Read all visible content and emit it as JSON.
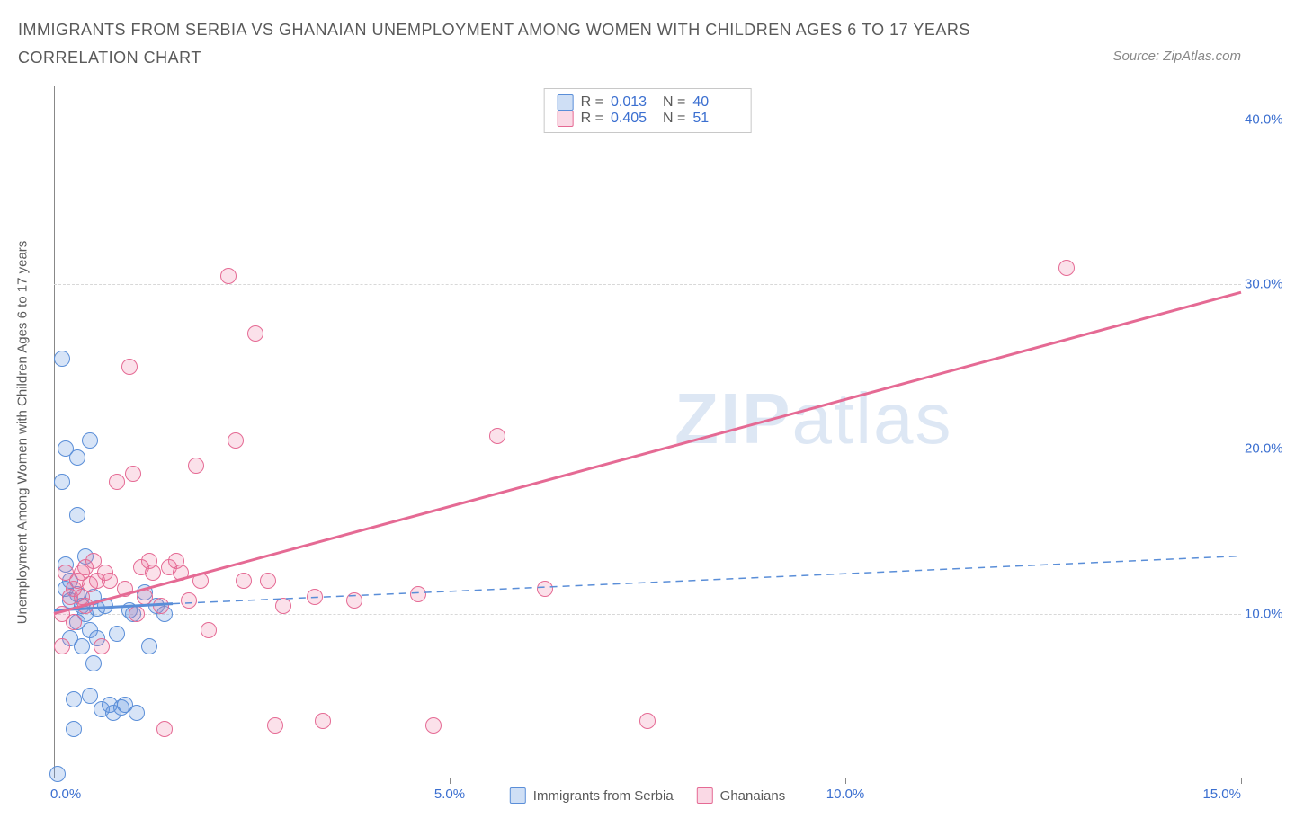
{
  "title": "IMMIGRANTS FROM SERBIA VS GHANAIAN UNEMPLOYMENT AMONG WOMEN WITH CHILDREN AGES 6 TO 17 YEARS CORRELATION CHART",
  "source": "Source: ZipAtlas.com",
  "ylabel": "Unemployment Among Women with Children Ages 6 to 17 years",
  "watermark": {
    "bold": "ZIP",
    "light": "atlas"
  },
  "chart": {
    "type": "scatter",
    "xlim": [
      0,
      15
    ],
    "ylim": [
      0,
      42
    ],
    "x_ticks": [
      0,
      5,
      10,
      15
    ],
    "x_tick_labels": [
      "0.0%",
      "5.0%",
      "10.0%",
      "15.0%"
    ],
    "y_ticks": [
      10,
      20,
      30,
      40
    ],
    "y_tick_labels": [
      "10.0%",
      "20.0%",
      "30.0%",
      "40.0%"
    ],
    "grid_color": "#d8d8d8",
    "axis_color": "#888888",
    "background_color": "#ffffff",
    "series": [
      {
        "name": "Immigrants from Serbia",
        "color_fill": "rgba(96,148,222,0.25)",
        "color_stroke": "#5a8ed8",
        "class": "blue",
        "points": [
          [
            0.05,
            0.3
          ],
          [
            0.1,
            25.5
          ],
          [
            0.1,
            18.0
          ],
          [
            0.15,
            20.0
          ],
          [
            0.15,
            13.0
          ],
          [
            0.15,
            11.5
          ],
          [
            0.2,
            12.0
          ],
          [
            0.2,
            10.8
          ],
          [
            0.2,
            8.5
          ],
          [
            0.25,
            4.8
          ],
          [
            0.25,
            3.0
          ],
          [
            0.3,
            19.5
          ],
          [
            0.3,
            16.0
          ],
          [
            0.3,
            11.2
          ],
          [
            0.3,
            9.5
          ],
          [
            0.35,
            10.5
          ],
          [
            0.35,
            8.0
          ],
          [
            0.4,
            13.5
          ],
          [
            0.4,
            10.0
          ],
          [
            0.45,
            20.5
          ],
          [
            0.45,
            9.0
          ],
          [
            0.45,
            5.0
          ],
          [
            0.5,
            11.0
          ],
          [
            0.5,
            7.0
          ],
          [
            0.55,
            10.3
          ],
          [
            0.55,
            8.5
          ],
          [
            0.6,
            4.2
          ],
          [
            0.65,
            10.5
          ],
          [
            0.7,
            4.5
          ],
          [
            0.75,
            4.0
          ],
          [
            0.8,
            8.8
          ],
          [
            0.85,
            4.3
          ],
          [
            0.9,
            4.5
          ],
          [
            0.95,
            10.2
          ],
          [
            1.0,
            10.0
          ],
          [
            1.05,
            4.0
          ],
          [
            1.15,
            11.3
          ],
          [
            1.2,
            8.0
          ],
          [
            1.3,
            10.5
          ],
          [
            1.4,
            10.0
          ]
        ],
        "trend": {
          "x1": 0,
          "y1": 10.2,
          "x2": 1.5,
          "y2": 10.6,
          "dash_x2": 15,
          "dash_y2": 13.5,
          "stroke_width": 3,
          "dash_pattern": "8,6"
        }
      },
      {
        "name": "Ghanaians",
        "color_fill": "rgba(236,120,160,0.22)",
        "color_stroke": "#e56a94",
        "class": "pink",
        "points": [
          [
            0.1,
            10.0
          ],
          [
            0.1,
            8.0
          ],
          [
            0.15,
            12.5
          ],
          [
            0.2,
            11.0
          ],
          [
            0.25,
            11.5
          ],
          [
            0.25,
            9.5
          ],
          [
            0.3,
            12.0
          ],
          [
            0.35,
            12.5
          ],
          [
            0.35,
            11.0
          ],
          [
            0.4,
            12.8
          ],
          [
            0.4,
            10.5
          ],
          [
            0.45,
            11.8
          ],
          [
            0.5,
            13.2
          ],
          [
            0.55,
            12.0
          ],
          [
            0.6,
            8.0
          ],
          [
            0.65,
            12.5
          ],
          [
            0.7,
            12.0
          ],
          [
            0.8,
            18.0
          ],
          [
            0.9,
            11.5
          ],
          [
            0.95,
            25.0
          ],
          [
            1.0,
            18.5
          ],
          [
            1.05,
            10.0
          ],
          [
            1.1,
            12.8
          ],
          [
            1.15,
            11.0
          ],
          [
            1.2,
            13.2
          ],
          [
            1.25,
            12.5
          ],
          [
            1.35,
            10.5
          ],
          [
            1.4,
            3.0
          ],
          [
            1.45,
            12.8
          ],
          [
            1.55,
            13.2
          ],
          [
            1.6,
            12.5
          ],
          [
            1.7,
            10.8
          ],
          [
            1.8,
            19.0
          ],
          [
            1.85,
            12.0
          ],
          [
            1.95,
            9.0
          ],
          [
            2.2,
            30.5
          ],
          [
            2.3,
            20.5
          ],
          [
            2.4,
            12.0
          ],
          [
            2.55,
            27.0
          ],
          [
            2.7,
            12.0
          ],
          [
            2.8,
            3.2
          ],
          [
            2.9,
            10.5
          ],
          [
            3.3,
            11.0
          ],
          [
            3.4,
            3.5
          ],
          [
            3.8,
            10.8
          ],
          [
            4.6,
            11.2
          ],
          [
            4.8,
            3.2
          ],
          [
            5.6,
            20.8
          ],
          [
            6.2,
            11.5
          ],
          [
            7.5,
            3.5
          ],
          [
            12.8,
            31.0
          ]
        ],
        "trend": {
          "x1": 0,
          "y1": 10.0,
          "x2": 15,
          "y2": 29.5,
          "stroke_width": 3
        }
      }
    ]
  },
  "stats": {
    "rows": [
      {
        "class": "blue",
        "r": "0.013",
        "n": "40"
      },
      {
        "class": "pink",
        "r": "0.405",
        "n": "51"
      }
    ],
    "r_label": "R =",
    "n_label": "N ="
  },
  "legend": {
    "items": [
      {
        "class": "blue",
        "label": "Immigrants from Serbia"
      },
      {
        "class": "pink",
        "label": "Ghanaians"
      }
    ]
  }
}
